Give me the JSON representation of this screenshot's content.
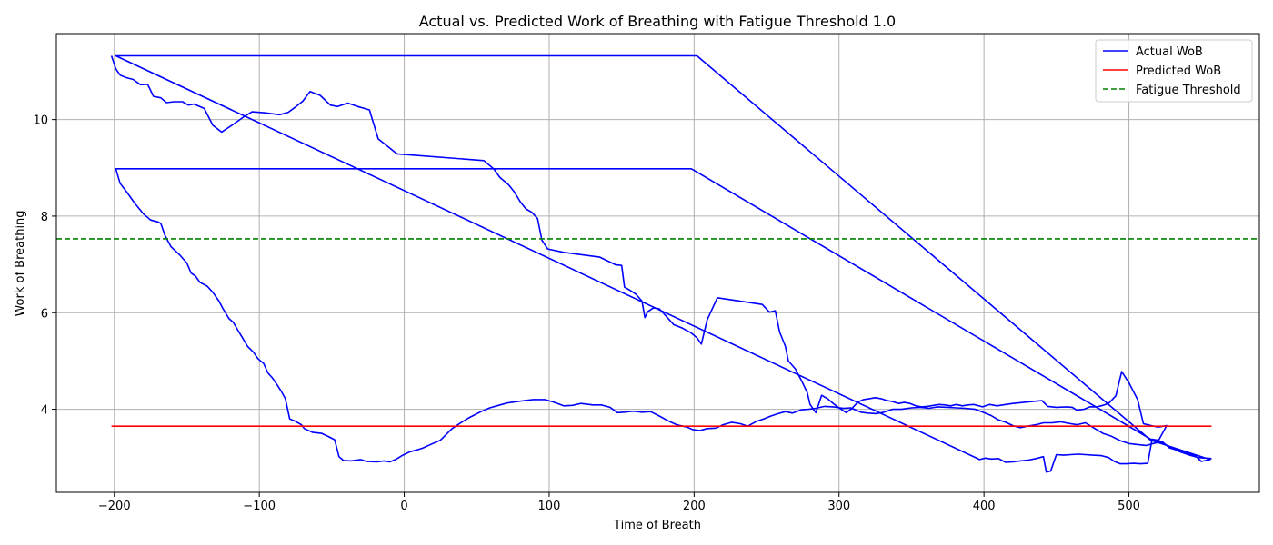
{
  "chart_data": {
    "type": "line",
    "title": "Actual vs. Predicted Work of Breathing with Fatigue Threshold 1.0",
    "xlabel": "Time of Breath",
    "ylabel": "Work of Breathing",
    "xlim": [
      -240,
      590
    ],
    "ylim": [
      2.28,
      11.78
    ],
    "xticks": [
      -200,
      -100,
      0,
      100,
      200,
      300,
      400,
      500
    ],
    "yticks": [
      4,
      6,
      8,
      10
    ],
    "grid": true,
    "legend_position": "top-right",
    "series": [
      {
        "name": "Actual WoB",
        "color": "#0000ff",
        "style": "solid",
        "points": [
          [
            -202,
            11.32
          ],
          [
            -199,
            11.05
          ],
          [
            -196,
            10.92
          ],
          [
            -192,
            10.87
          ],
          [
            -187,
            10.83
          ],
          [
            -182,
            10.72
          ],
          [
            -177,
            10.73
          ],
          [
            -173,
            10.48
          ],
          [
            -168,
            10.45
          ],
          [
            -164,
            10.35
          ],
          [
            -159,
            10.37
          ],
          [
            -153,
            10.37
          ],
          [
            -149,
            10.3
          ],
          [
            -145,
            10.32
          ],
          [
            -138,
            10.23
          ],
          [
            -132,
            9.88
          ],
          [
            -126,
            9.74
          ],
          [
            -119,
            9.88
          ],
          [
            -111,
            10.05
          ],
          [
            -105,
            10.16
          ],
          [
            -96,
            10.14
          ],
          [
            -86,
            10.1
          ],
          [
            -80,
            10.15
          ],
          [
            -75,
            10.26
          ],
          [
            -70,
            10.38
          ],
          [
            -65,
            10.58
          ],
          [
            -58,
            10.5
          ],
          [
            -51,
            10.3
          ],
          [
            -46,
            10.27
          ],
          [
            -39,
            10.34
          ],
          [
            -32,
            10.27
          ],
          [
            -24,
            10.2
          ],
          [
            -18,
            9.6
          ],
          [
            -5,
            9.29
          ],
          [
            55,
            9.15
          ],
          [
            62,
            8.97
          ],
          [
            66,
            8.8
          ],
          [
            72,
            8.65
          ],
          [
            76,
            8.5
          ],
          [
            80,
            8.3
          ],
          [
            84,
            8.15
          ],
          [
            88,
            8.08
          ],
          [
            92,
            7.95
          ],
          [
            95,
            7.5
          ],
          [
            99,
            7.32
          ],
          [
            110,
            7.25
          ],
          [
            135,
            7.15
          ],
          [
            146,
            6.99
          ],
          [
            150,
            6.98
          ],
          [
            152,
            6.53
          ],
          [
            156,
            6.46
          ],
          [
            160,
            6.38
          ],
          [
            164,
            6.24
          ],
          [
            166,
            5.9
          ],
          [
            168,
            6.02
          ],
          [
            172,
            6.1
          ],
          [
            176,
            6.08
          ],
          [
            180,
            5.95
          ],
          [
            186,
            5.75
          ],
          [
            192,
            5.68
          ],
          [
            198,
            5.58
          ],
          [
            202,
            5.48
          ],
          [
            205,
            5.35
          ],
          [
            209,
            5.85
          ],
          [
            216,
            6.31
          ],
          [
            247,
            6.17
          ],
          [
            252,
            6.01
          ],
          [
            256,
            6.04
          ],
          [
            259,
            5.6
          ],
          [
            263,
            5.3
          ],
          [
            265,
            5.0
          ],
          [
            270,
            4.83
          ],
          [
            274,
            4.6
          ],
          [
            278,
            4.35
          ],
          [
            280,
            4.1
          ],
          [
            284,
            3.93
          ],
          [
            288,
            4.29
          ],
          [
            292,
            4.22
          ],
          [
            296,
            4.12
          ],
          [
            300,
            4.03
          ],
          [
            305,
            3.93
          ],
          [
            309,
            4.02
          ],
          [
            313,
            4.15
          ],
          [
            317,
            4.2
          ],
          [
            321,
            4.22
          ],
          [
            325,
            4.24
          ],
          [
            329,
            4.22
          ],
          [
            333,
            4.18
          ],
          [
            337,
            4.16
          ],
          [
            341,
            4.12
          ],
          [
            345,
            4.14
          ],
          [
            349,
            4.12
          ],
          [
            353,
            4.07
          ],
          [
            357,
            4.05
          ],
          [
            361,
            4.06
          ],
          [
            365,
            4.08
          ],
          [
            369,
            4.1
          ],
          [
            373,
            4.09
          ],
          [
            377,
            4.07
          ],
          [
            381,
            4.1
          ],
          [
            385,
            4.07
          ],
          [
            389,
            4.09
          ],
          [
            393,
            4.1
          ],
          [
            399,
            4.05
          ],
          [
            404,
            4.1
          ],
          [
            409,
            4.07
          ],
          [
            415,
            4.1
          ],
          [
            420,
            4.12
          ],
          [
            440,
            4.18
          ],
          [
            444,
            4.06
          ],
          [
            450,
            4.04
          ],
          [
            457,
            4.05
          ],
          [
            461,
            4.04
          ],
          [
            464,
            3.98
          ],
          [
            469,
            4.0
          ],
          [
            473,
            4.05
          ],
          [
            478,
            4.05
          ],
          [
            482,
            4.08
          ],
          [
            486,
            4.12
          ],
          [
            491,
            4.28
          ],
          [
            495,
            4.78
          ],
          [
            500,
            4.55
          ],
          [
            506,
            4.2
          ],
          [
            510,
            3.7
          ],
          [
            520,
            3.63
          ],
          [
            526,
            3.66
          ],
          [
            520,
            3.33
          ],
          [
            515,
            3.38
          ],
          [
            198,
            8.98
          ],
          [
            -199,
            8.98
          ],
          [
            -196,
            8.68
          ],
          [
            -191,
            8.48
          ],
          [
            -186,
            8.27
          ],
          [
            -180,
            8.05
          ],
          [
            -175,
            7.92
          ],
          [
            -170,
            7.88
          ],
          [
            -168,
            7.85
          ],
          [
            -165,
            7.6
          ],
          [
            -161,
            7.37
          ],
          [
            -155,
            7.2
          ],
          [
            -150,
            7.03
          ],
          [
            -147,
            6.82
          ],
          [
            -144,
            6.76
          ],
          [
            -141,
            6.63
          ],
          [
            -136,
            6.55
          ],
          [
            -132,
            6.42
          ],
          [
            -128,
            6.25
          ],
          [
            -125,
            6.08
          ],
          [
            -121,
            5.88
          ],
          [
            -118,
            5.8
          ],
          [
            -115,
            5.65
          ],
          [
            -112,
            5.5
          ],
          [
            -108,
            5.3
          ],
          [
            -104,
            5.18
          ],
          [
            -101,
            5.05
          ],
          [
            -97,
            4.95
          ],
          [
            -94,
            4.75
          ],
          [
            -91,
            4.65
          ],
          [
            -88,
            4.52
          ],
          [
            -85,
            4.38
          ],
          [
            -82,
            4.22
          ],
          [
            -79,
            3.8
          ],
          [
            -75,
            3.75
          ],
          [
            -71,
            3.68
          ],
          [
            -69,
            3.6
          ],
          [
            -63,
            3.52
          ],
          [
            -57,
            3.5
          ],
          [
            -52,
            3.43
          ],
          [
            -48,
            3.37
          ],
          [
            -45,
            3.02
          ],
          [
            -42,
            2.94
          ],
          [
            -37,
            2.93
          ],
          [
            -30,
            2.96
          ],
          [
            -26,
            2.92
          ],
          [
            -19,
            2.91
          ],
          [
            -14,
            2.93
          ],
          [
            -10,
            2.91
          ],
          [
            -6,
            2.96
          ],
          [
            -1,
            3.05
          ],
          [
            4,
            3.12
          ],
          [
            9,
            3.16
          ],
          [
            13,
            3.2
          ],
          [
            19,
            3.28
          ],
          [
            25,
            3.36
          ],
          [
            29,
            3.48
          ],
          [
            33,
            3.6
          ],
          [
            39,
            3.72
          ],
          [
            45,
            3.83
          ],
          [
            53,
            3.95
          ],
          [
            59,
            4.03
          ],
          [
            65,
            4.08
          ],
          [
            71,
            4.13
          ],
          [
            76,
            4.15
          ],
          [
            83,
            4.18
          ],
          [
            89,
            4.2
          ],
          [
            97,
            4.2
          ],
          [
            103,
            4.15
          ],
          [
            110,
            4.07
          ],
          [
            116,
            4.08
          ],
          [
            122,
            4.12
          ],
          [
            130,
            4.09
          ],
          [
            136,
            4.09
          ],
          [
            142,
            4.04
          ],
          [
            147,
            3.93
          ],
          [
            152,
            3.94
          ],
          [
            158,
            3.96
          ],
          [
            164,
            3.94
          ],
          [
            170,
            3.95
          ],
          [
            176,
            3.86
          ],
          [
            182,
            3.76
          ],
          [
            188,
            3.68
          ],
          [
            195,
            3.63
          ],
          [
            199,
            3.58
          ],
          [
            204,
            3.56
          ],
          [
            209,
            3.6
          ],
          [
            215,
            3.61
          ],
          [
            220,
            3.68
          ],
          [
            226,
            3.73
          ],
          [
            232,
            3.7
          ],
          [
            237,
            3.65
          ],
          [
            243,
            3.75
          ],
          [
            248,
            3.8
          ],
          [
            253,
            3.86
          ],
          [
            258,
            3.91
          ],
          [
            263,
            3.95
          ],
          [
            268,
            3.92
          ],
          [
            274,
            3.99
          ],
          [
            279,
            4.0
          ],
          [
            284,
            4.02
          ],
          [
            290,
            4.06
          ],
          [
            296,
            4.05
          ],
          [
            303,
            4.02
          ],
          [
            308,
            4.03
          ],
          [
            315,
            3.94
          ],
          [
            320,
            3.92
          ],
          [
            326,
            3.91
          ],
          [
            331,
            3.94
          ],
          [
            337,
            4.0
          ],
          [
            343,
            4.0
          ],
          [
            350,
            4.03
          ],
          [
            356,
            4.04
          ],
          [
            362,
            4.02
          ],
          [
            368,
            4.05
          ],
          [
            375,
            4.04
          ],
          [
            381,
            4.03
          ],
          [
            387,
            4.02
          ],
          [
            394,
            4.0
          ],
          [
            400,
            3.93
          ],
          [
            405,
            3.87
          ],
          [
            410,
            3.78
          ],
          [
            415,
            3.73
          ],
          [
            420,
            3.66
          ],
          [
            425,
            3.62
          ],
          [
            430,
            3.65
          ],
          [
            436,
            3.68
          ],
          [
            441,
            3.72
          ],
          [
            447,
            3.72
          ],
          [
            453,
            3.74
          ],
          [
            458,
            3.71
          ],
          [
            464,
            3.68
          ],
          [
            470,
            3.72
          ],
          [
            476,
            3.61
          ],
          [
            482,
            3.5
          ],
          [
            488,
            3.44
          ],
          [
            494,
            3.35
          ],
          [
            500,
            3.29
          ],
          [
            506,
            3.27
          ],
          [
            512,
            3.25
          ],
          [
            518,
            3.3
          ],
          [
            523,
            3.33
          ],
          [
            528,
            3.2
          ],
          [
            534,
            3.15
          ],
          [
            539,
            3.1
          ],
          [
            546,
            3.03
          ],
          [
            550,
            2.92
          ],
          [
            556,
            2.96
          ],
          [
            515,
            3.36
          ],
          [
            202,
            11.32
          ],
          [
            -199,
            11.32
          ],
          [
            397,
            2.96
          ],
          [
            401,
            2.99
          ],
          [
            405,
            2.97
          ],
          [
            410,
            2.98
          ],
          [
            415,
            2.9
          ],
          [
            420,
            2.91
          ],
          [
            425,
            2.93
          ],
          [
            431,
            2.95
          ],
          [
            436,
            2.98
          ],
          [
            441,
            3.02
          ],
          [
            443,
            2.7
          ],
          [
            446,
            2.72
          ],
          [
            450,
            3.06
          ],
          [
            455,
            3.05
          ],
          [
            460,
            3.06
          ],
          [
            465,
            3.07
          ],
          [
            470,
            3.06
          ],
          [
            475,
            3.05
          ],
          [
            481,
            3.04
          ],
          [
            486,
            3.0
          ],
          [
            490,
            2.92
          ],
          [
            494,
            2.87
          ],
          [
            498,
            2.87
          ],
          [
            503,
            2.88
          ],
          [
            508,
            2.87
          ],
          [
            513,
            2.88
          ],
          [
            516,
            3.38
          ],
          [
            520,
            3.36
          ],
          [
            528,
            3.22
          ],
          [
            535,
            3.12
          ],
          [
            542,
            3.05
          ],
          [
            548,
            3.0
          ],
          [
            557,
            2.98
          ]
        ]
      },
      {
        "name": "Predicted WoB",
        "color": "#ff0000",
        "style": "solid",
        "points": [
          [
            -202,
            3.65
          ],
          [
            557,
            3.65
          ]
        ]
      },
      {
        "name": "Fatigue Threshold",
        "color": "#008000",
        "style": "dashed",
        "y": 7.53
      }
    ]
  }
}
